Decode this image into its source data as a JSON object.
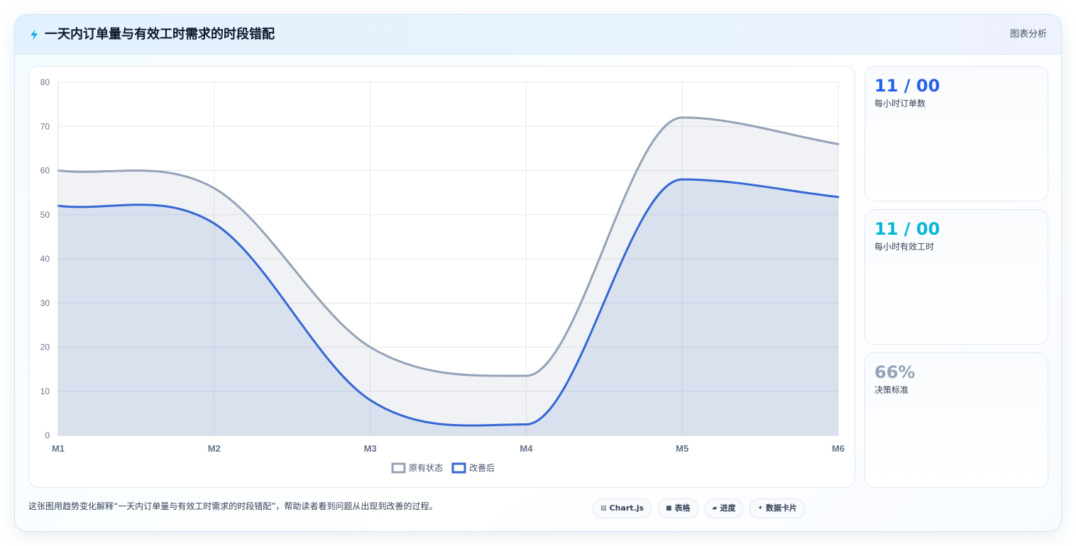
{
  "header": {
    "title": "一天内订单量与有效工时需求的时段错配",
    "tag": "图表分析"
  },
  "chart_data": {
    "type": "line",
    "categories": [
      "M1",
      "M2",
      "M3",
      "M4",
      "M5",
      "M6"
    ],
    "ylim": [
      0,
      80
    ],
    "yticks": [
      0,
      10,
      20,
      30,
      40,
      50,
      60,
      70,
      80
    ],
    "grid": true,
    "legend": "bottom",
    "series": [
      {
        "name": "原有状态",
        "values": [
          60,
          56,
          20,
          13.5,
          72,
          66
        ],
        "color": "#94a3b8",
        "fill": "rgba(148,163,184,0.14)"
      },
      {
        "name": "改善后",
        "values": [
          52,
          48,
          8,
          2.5,
          58,
          54
        ],
        "color": "#3467d4",
        "fill": "rgba(59,108,200,0.12)"
      }
    ]
  },
  "stats": [
    {
      "value": "11 / 00",
      "label": "每小时订单数",
      "color": "#2563eb"
    },
    {
      "value": "11 / 00",
      "label": "每小时有效工时",
      "color": "#06b6d4"
    },
    {
      "value": "66%",
      "label": "决策标准",
      "color": "#94a3b8"
    }
  ],
  "footer": {
    "text": "这张图用趋势变化解释“一天内订单量与有效工时需求的时段错配”，帮助读者看到问题从出现到改善的过程。",
    "chips": [
      {
        "icon": "table-icon",
        "glyph": "▤",
        "label": "Chart.js"
      },
      {
        "icon": "grid-icon",
        "glyph": "■",
        "label": "表格"
      },
      {
        "icon": "progress-icon",
        "glyph": "▰",
        "label": "进度"
      },
      {
        "icon": "sparkle-icon",
        "glyph": "✦",
        "label": "数据卡片"
      }
    ]
  }
}
